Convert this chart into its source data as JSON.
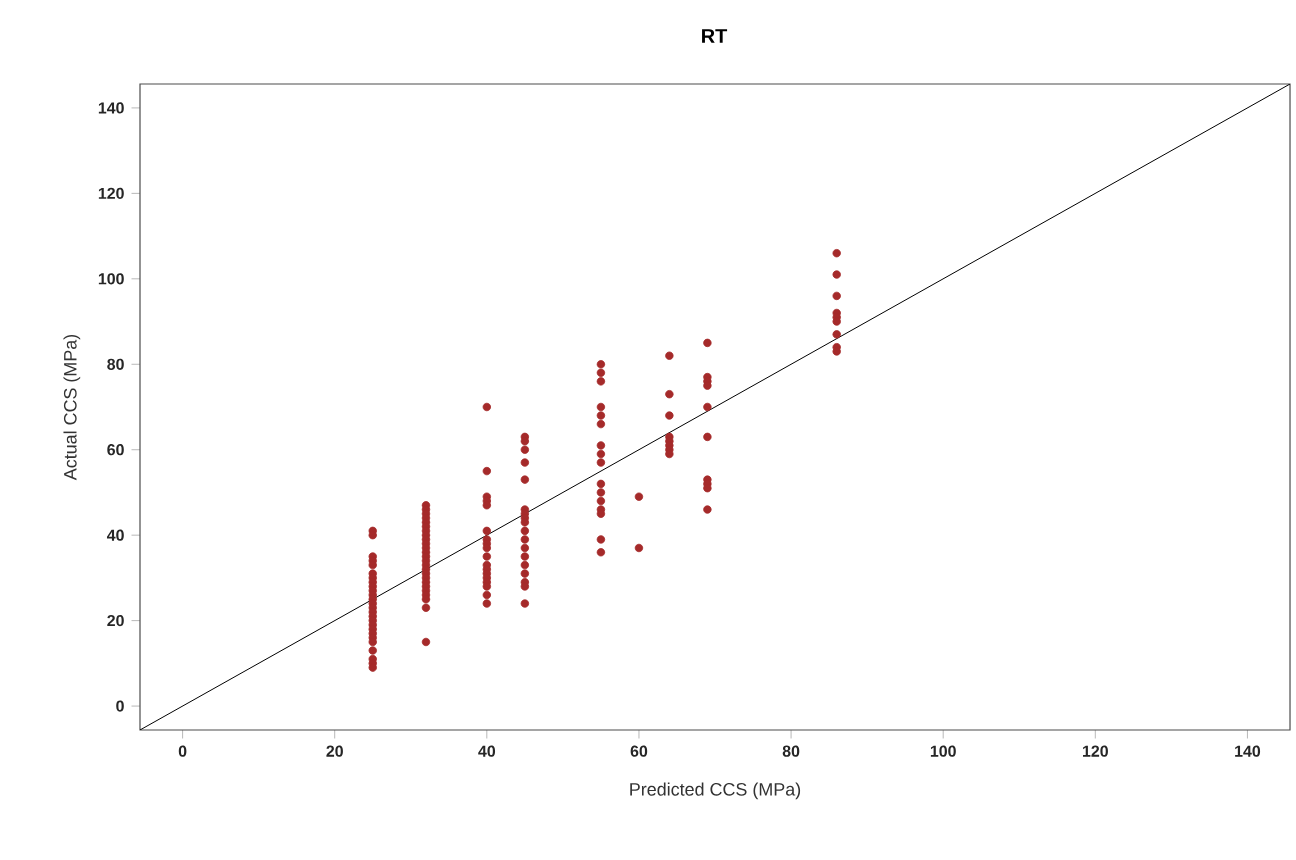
{
  "chart_data": {
    "type": "scatter",
    "title": "RT",
    "xlabel": "Predicted CCS (MPa)",
    "ylabel": "Actual CCS (MPa)",
    "xlim": [
      -5.6,
      145.6
    ],
    "ylim": [
      -5.6,
      145.6
    ],
    "xticks": [
      0,
      20,
      40,
      60,
      80,
      100,
      120,
      140
    ],
    "yticks": [
      0,
      20,
      40,
      60,
      80,
      100,
      120,
      140
    ],
    "marker": "circle",
    "grid": false,
    "series": [
      {
        "color": "#a52a2a",
        "x": [
          25,
          25,
          25,
          25,
          25,
          25,
          25,
          25,
          25,
          25,
          25,
          25,
          25,
          25,
          25,
          25,
          25,
          25,
          25,
          25,
          25,
          25,
          25,
          25,
          25,
          25,
          32,
          32,
          32,
          32,
          32,
          32,
          32,
          32,
          32,
          32,
          32,
          32,
          32,
          32,
          32,
          32,
          32,
          32,
          32,
          32,
          32,
          32,
          32,
          32,
          32,
          40,
          40,
          40,
          40,
          40,
          40,
          40,
          40,
          40,
          40,
          40,
          40,
          40,
          40,
          40,
          40,
          40,
          40,
          45,
          45,
          45,
          45,
          45,
          45,
          45,
          45,
          45,
          45,
          45,
          45,
          45,
          45,
          45,
          45,
          45,
          45,
          55,
          55,
          55,
          55,
          55,
          55,
          55,
          55,
          55,
          55,
          55,
          55,
          55,
          55,
          55,
          55,
          60,
          60,
          64,
          64,
          64,
          64,
          64,
          64,
          64,
          64,
          69,
          69,
          69,
          69,
          69,
          69,
          69,
          69,
          69,
          69,
          86,
          86,
          86,
          86,
          86,
          86,
          86,
          86,
          86
        ],
        "values": [
          41,
          40,
          35,
          34,
          33,
          31,
          30,
          29,
          28,
          27,
          26,
          25,
          24,
          23,
          22,
          21,
          20,
          19,
          18,
          17,
          16,
          15,
          13,
          11,
          10,
          9,
          47,
          46,
          45,
          44,
          43,
          42,
          41,
          40,
          39,
          38,
          37,
          36,
          35,
          34,
          33,
          32,
          31,
          30,
          29,
          28,
          27,
          26,
          25,
          23,
          15,
          70,
          55,
          49,
          48,
          47,
          41,
          39,
          38,
          37,
          35,
          33,
          32,
          31,
          30,
          29,
          28,
          26,
          24,
          63,
          62,
          60,
          57,
          53,
          46,
          45,
          44,
          43,
          41,
          39,
          37,
          35,
          33,
          31,
          29,
          28,
          24,
          80,
          78,
          76,
          70,
          68,
          66,
          61,
          59,
          57,
          52,
          50,
          48,
          46,
          45,
          39,
          36,
          49,
          37,
          82,
          73,
          68,
          63,
          62,
          61,
          60,
          59,
          85,
          77,
          76,
          75,
          70,
          63,
          53,
          52,
          51,
          46,
          106,
          101,
          96,
          92,
          91,
          90,
          87,
          84,
          83
        ]
      },
      {
        "type": "line",
        "color": "#000000",
        "marker": "none",
        "x": [
          -5.6,
          145.6
        ],
        "values": [
          -5.6,
          145.6
        ]
      }
    ]
  }
}
